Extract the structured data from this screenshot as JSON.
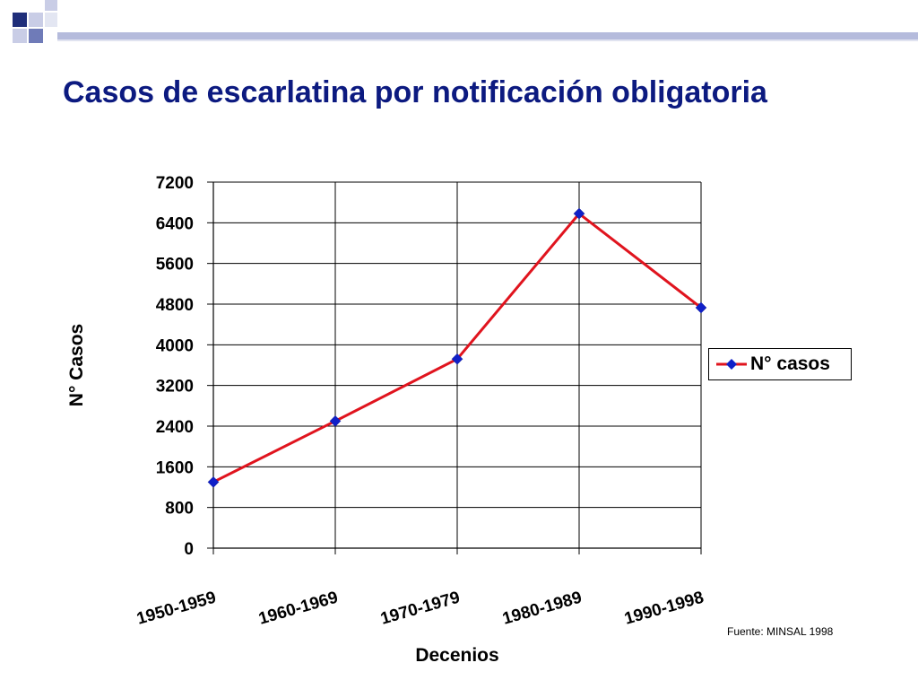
{
  "slide": {
    "title": "Casos de escarlatina por notificación obligatoria",
    "source": "Fuente: MINSAL 1998",
    "accent_colors": [
      "#1f2e7a",
      "#6f7bb8",
      "#c9cde6"
    ]
  },
  "chart_data": {
    "type": "line",
    "categories": [
      "1950-1959",
      "1960-1969",
      "1970-1979",
      "1980-1989",
      "1990-1998"
    ],
    "series": [
      {
        "name": "N° casos",
        "values": [
          1300,
          2500,
          3720,
          6580,
          4730
        ],
        "color": "#e0141e",
        "marker_color": "#1020c8",
        "marker": "diamond"
      }
    ],
    "xlabel": "Decenios",
    "ylabel": "N° Casos",
    "ylim": [
      0,
      7200
    ],
    "yticks": [
      "0",
      "800",
      "1600",
      "2400",
      "3200",
      "4000",
      "4800",
      "5600",
      "6400",
      "7200"
    ],
    "grid": true,
    "legend_position": "right"
  }
}
